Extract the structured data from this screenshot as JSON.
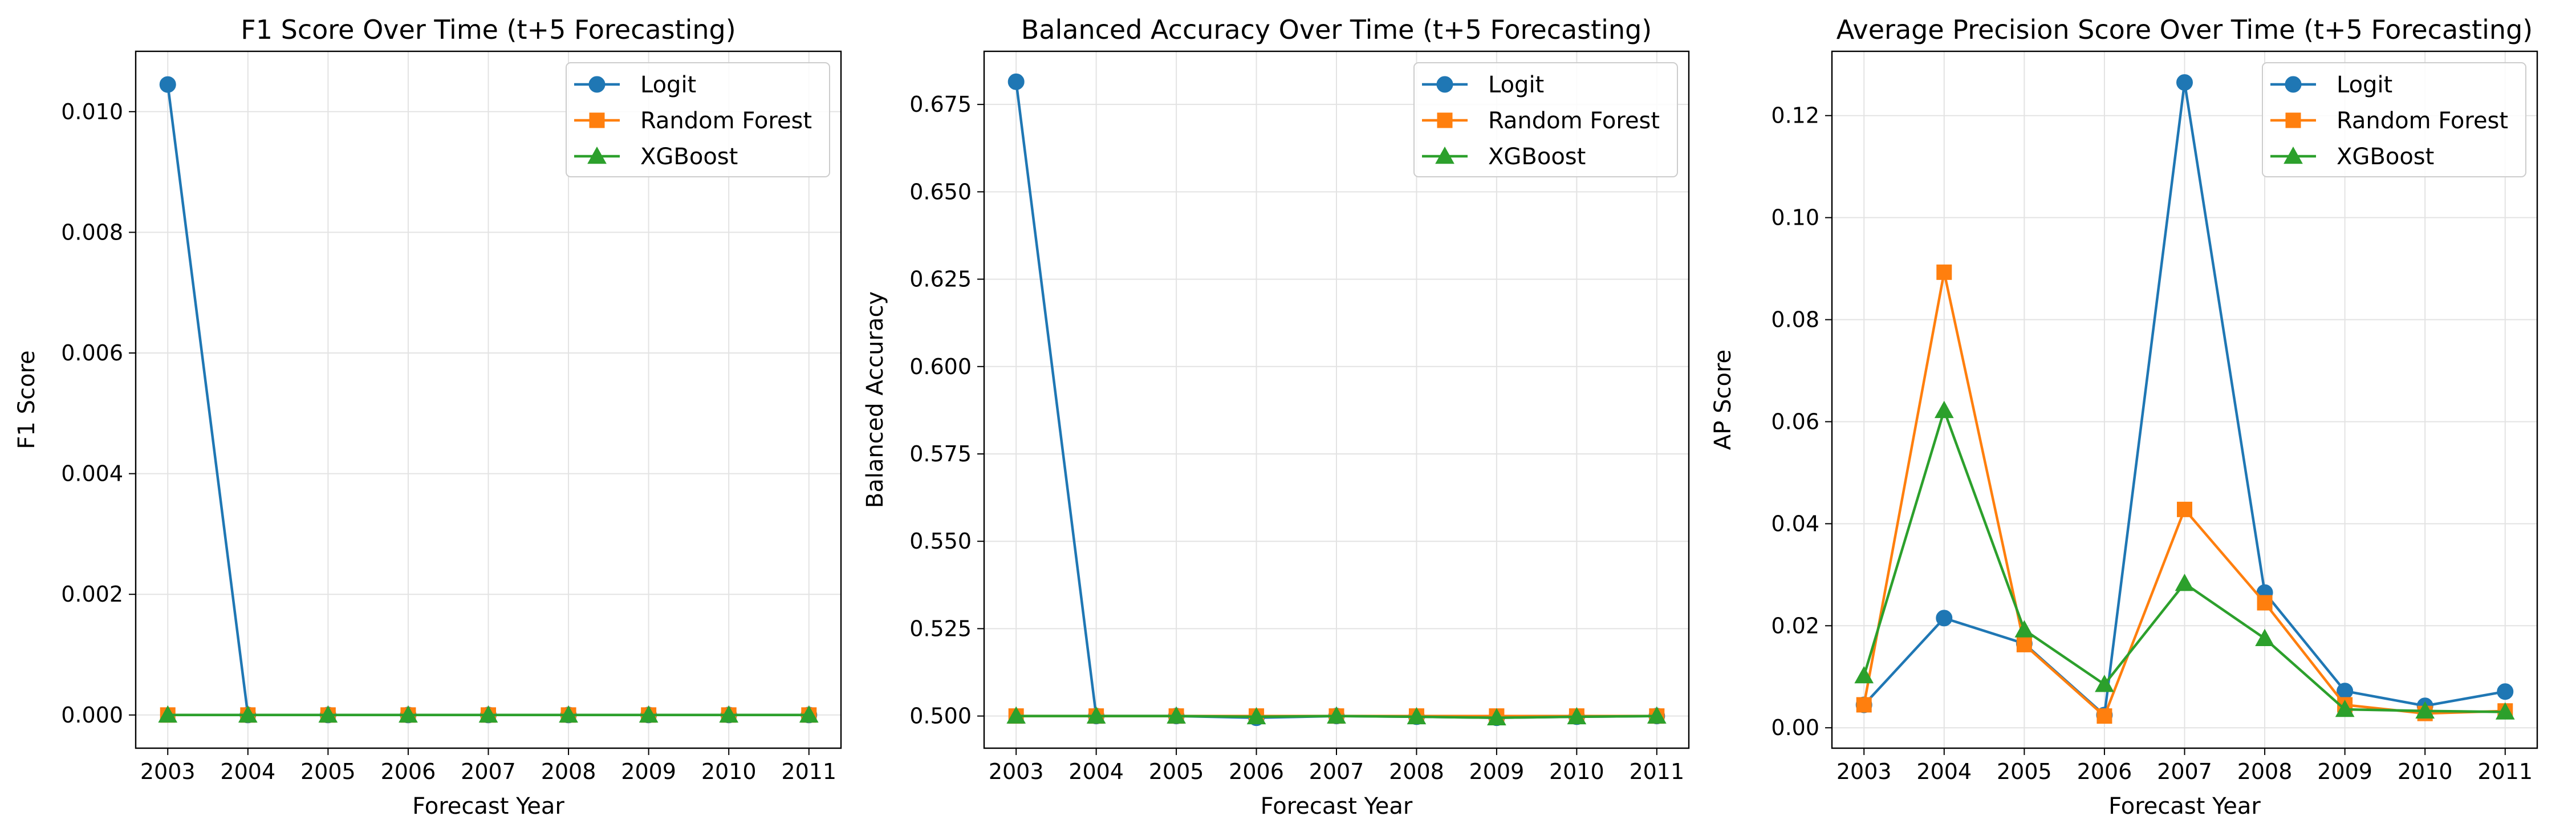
{
  "chart_data": [
    {
      "type": "line",
      "title": "F1 Score Over Time (t+5 Forecasting)",
      "xlabel": "Forecast Year",
      "ylabel": "F1 Score",
      "x": [
        2003,
        2004,
        2005,
        2006,
        2007,
        2008,
        2009,
        2010,
        2011
      ],
      "xticks": [
        "2003",
        "2004",
        "2005",
        "2006",
        "2007",
        "2008",
        "2009",
        "2010",
        "2011"
      ],
      "ylim": [
        -0.00055,
        0.011
      ],
      "yticks": [
        0.0,
        0.002,
        0.004,
        0.006,
        0.008,
        0.01
      ],
      "ytick_labels": [
        "0.000",
        "0.002",
        "0.004",
        "0.006",
        "0.008",
        "0.010"
      ],
      "grid": true,
      "legend_position": "upper-right",
      "series": [
        {
          "name": "Logit",
          "color": "#1f77b4",
          "marker": "circle",
          "values": [
            0.01045,
            0.0,
            0.0,
            0.0,
            0.0,
            0.0,
            0.0,
            0.0,
            0.0
          ]
        },
        {
          "name": "Random Forest",
          "color": "#ff7f0e",
          "marker": "square",
          "values": [
            0.0,
            0.0,
            0.0,
            0.0,
            0.0,
            0.0,
            0.0,
            0.0,
            0.0
          ]
        },
        {
          "name": "XGBoost",
          "color": "#2ca02c",
          "marker": "triangle",
          "values": [
            0.0,
            0.0,
            0.0,
            0.0,
            0.0,
            0.0,
            0.0,
            0.0,
            0.0
          ]
        }
      ]
    },
    {
      "type": "line",
      "title": "Balanced Accuracy Over Time (t+5 Forecasting)",
      "xlabel": "Forecast Year",
      "ylabel": "Balanced Accuracy",
      "x": [
        2003,
        2004,
        2005,
        2006,
        2007,
        2008,
        2009,
        2010,
        2011
      ],
      "xticks": [
        "2003",
        "2004",
        "2005",
        "2006",
        "2007",
        "2008",
        "2009",
        "2010",
        "2011"
      ],
      "ylim": [
        0.4908,
        0.6902
      ],
      "yticks": [
        0.5,
        0.525,
        0.55,
        0.575,
        0.6,
        0.625,
        0.65,
        0.675
      ],
      "ytick_labels": [
        "0.500",
        "0.525",
        "0.550",
        "0.575",
        "0.600",
        "0.625",
        "0.650",
        "0.675"
      ],
      "grid": true,
      "legend_position": "upper-right",
      "series": [
        {
          "name": "Logit",
          "color": "#1f77b4",
          "marker": "circle",
          "values": [
            0.6815,
            0.5,
            0.5,
            0.4995,
            0.5,
            0.4998,
            0.4995,
            0.4998,
            0.5
          ]
        },
        {
          "name": "Random Forest",
          "color": "#ff7f0e",
          "marker": "square",
          "values": [
            0.5,
            0.5,
            0.5,
            0.5,
            0.5,
            0.5,
            0.5,
            0.5,
            0.5
          ]
        },
        {
          "name": "XGBoost",
          "color": "#2ca02c",
          "marker": "triangle",
          "values": [
            0.5,
            0.5,
            0.5,
            0.4998,
            0.5,
            0.4998,
            0.4995,
            0.4998,
            0.5
          ]
        }
      ]
    },
    {
      "type": "line",
      "title": "Average Precision Score Over Time (t+5 Forecasting)",
      "xlabel": "Forecast Year",
      "ylabel": "AP Score",
      "x": [
        2003,
        2004,
        2005,
        2006,
        2007,
        2008,
        2009,
        2010,
        2011
      ],
      "xticks": [
        "2003",
        "2004",
        "2005",
        "2006",
        "2007",
        "2008",
        "2009",
        "2010",
        "2011"
      ],
      "ylim": [
        -0.004,
        0.1326
      ],
      "yticks": [
        0.0,
        0.02,
        0.04,
        0.06,
        0.08,
        0.1,
        0.12
      ],
      "ytick_labels": [
        "0.00",
        "0.02",
        "0.04",
        "0.06",
        "0.08",
        "0.10",
        "0.12"
      ],
      "grid": true,
      "legend_position": "upper-right",
      "series": [
        {
          "name": "Logit",
          "color": "#1f77b4",
          "marker": "circle",
          "values": [
            0.0045,
            0.0215,
            0.0165,
            0.0025,
            0.1265,
            0.0265,
            0.0072,
            0.0043,
            0.0071
          ]
        },
        {
          "name": "Random Forest",
          "color": "#ff7f0e",
          "marker": "square",
          "values": [
            0.0045,
            0.0893,
            0.0163,
            0.0023,
            0.0428,
            0.0245,
            0.0045,
            0.0028,
            0.0033
          ]
        },
        {
          "name": "XGBoost",
          "color": "#2ca02c",
          "marker": "triangle",
          "values": [
            0.0102,
            0.0622,
            0.0192,
            0.0085,
            0.0283,
            0.0175,
            0.0036,
            0.0033,
            0.0031
          ]
        }
      ]
    }
  ]
}
